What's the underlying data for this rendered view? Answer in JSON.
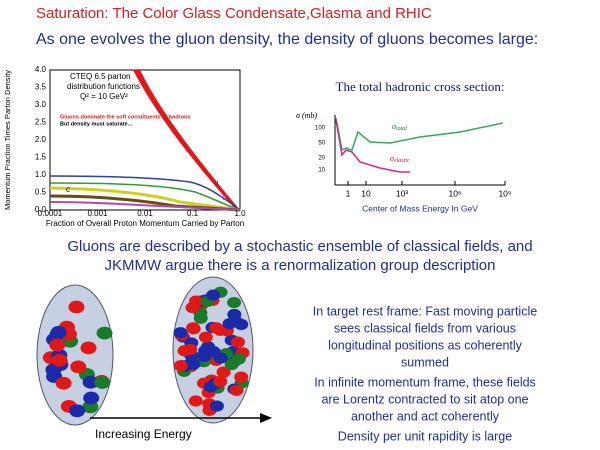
{
  "header": {
    "title": "Saturation: The Color Glass Condensate,Glasma and RHIC",
    "subtitle": "As one evolves the gluon density, the density of gluons becomes large:"
  },
  "pdf_figure": {
    "y_label": "Momentum Fraction Times Parton Density",
    "yticks": [
      "0.0",
      "0.5",
      "1.0",
      "1.5",
      "2.0",
      "2.5",
      "3.0",
      "3.5",
      "4.0"
    ],
    "xticks": [
      "0.0001",
      "0.001",
      "0.01",
      "0.1",
      "1.0"
    ],
    "x_label": "Fraction of Overall Proton Momentum Carried by Parton",
    "legend": [
      "CTEQ 6.5 parton",
      "distribution functions",
      "Q² = 10 GeV²"
    ],
    "gluon_label": "gluons",
    "note": [
      "Gluons dominate the soft constituents of hadrons",
      "But density must saturate..."
    ],
    "curve_labels": [
      "u",
      "d",
      "c"
    ]
  },
  "cross_section_figure": {
    "title": "The total hadronic cross section:",
    "y_label": "σ (mb)",
    "yticks": [
      "100",
      "50",
      "20",
      "10"
    ],
    "xticks": [
      "1",
      "10",
      "10³",
      "10⁶",
      "10⁹"
    ],
    "x_label": "Center of Mass Energy In GeV",
    "total": {
      "symbol": "σ",
      "sub": "total"
    },
    "elastic": {
      "symbol": "σ",
      "sub": "elastic"
    }
  },
  "middle_text": [
    "Gluons are described by a stochastic ensemble of classical fields, and",
    "JKMMW argue there is a renormalization group description"
  ],
  "diagram": {
    "arrow_label": "Increasing Energy"
  },
  "right_text": [
    [
      "In target rest frame:  Fast moving particle",
      "sees classical fields from various",
      "longitudinal positions as coherently",
      "summed"
    ],
    [
      "In infinite momentum frame, these fields",
      "are Lorentz contracted to sit atop one",
      "another and act coherently"
    ],
    [
      "Density per unit rapidity is large"
    ]
  ]
}
